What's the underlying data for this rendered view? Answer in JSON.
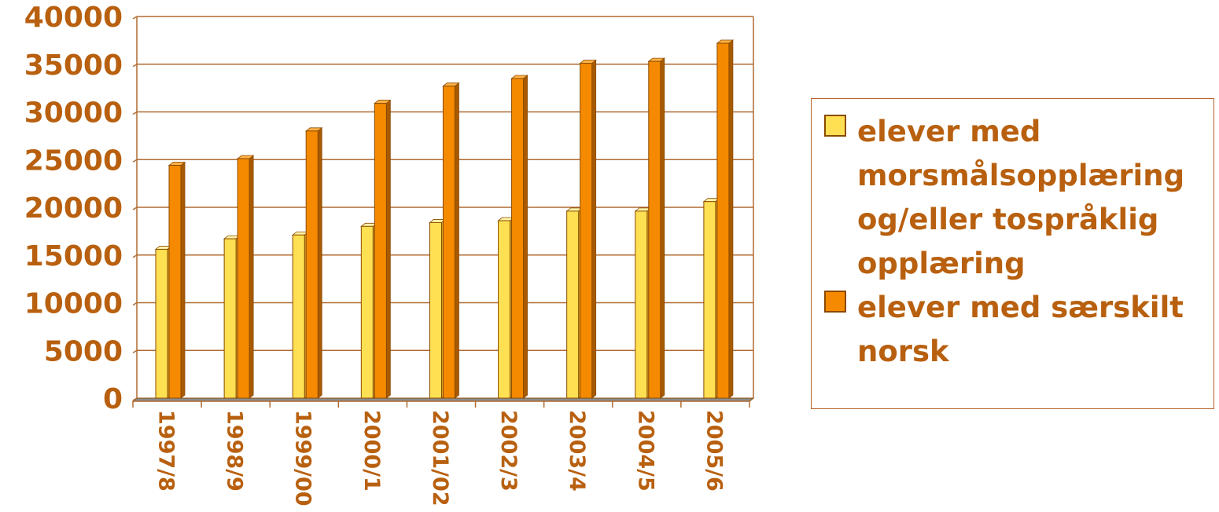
{
  "chart_data": {
    "type": "bar",
    "categories": [
      "1997/8",
      "1998/9",
      "1999/00",
      "2000/1",
      "2001/02",
      "2002/3",
      "2003/4",
      "2004/5",
      "2005/6"
    ],
    "series": [
      {
        "name": "elever med morsmålsopplæring og/eller tospråklig opplæring",
        "values": [
          15600,
          16700,
          17100,
          18000,
          18400,
          18600,
          19600,
          19600,
          20600
        ]
      },
      {
        "name": "elever med særskilt norsk",
        "values": [
          24400,
          25100,
          28000,
          30900,
          32700,
          33500,
          35100,
          35300,
          37200
        ]
      }
    ],
    "yticks": [
      "0",
      "5000",
      "10000",
      "15000",
      "20000",
      "25000",
      "30000",
      "35000",
      "40000"
    ],
    "ylim": [
      0,
      40000
    ],
    "grid": true,
    "legend_position": "right",
    "colors": {
      "series1": "#ffe052",
      "series2": "#f58a00",
      "text": "#b8600f",
      "axis": "#b06a30",
      "edge": "#8a4a00"
    }
  }
}
